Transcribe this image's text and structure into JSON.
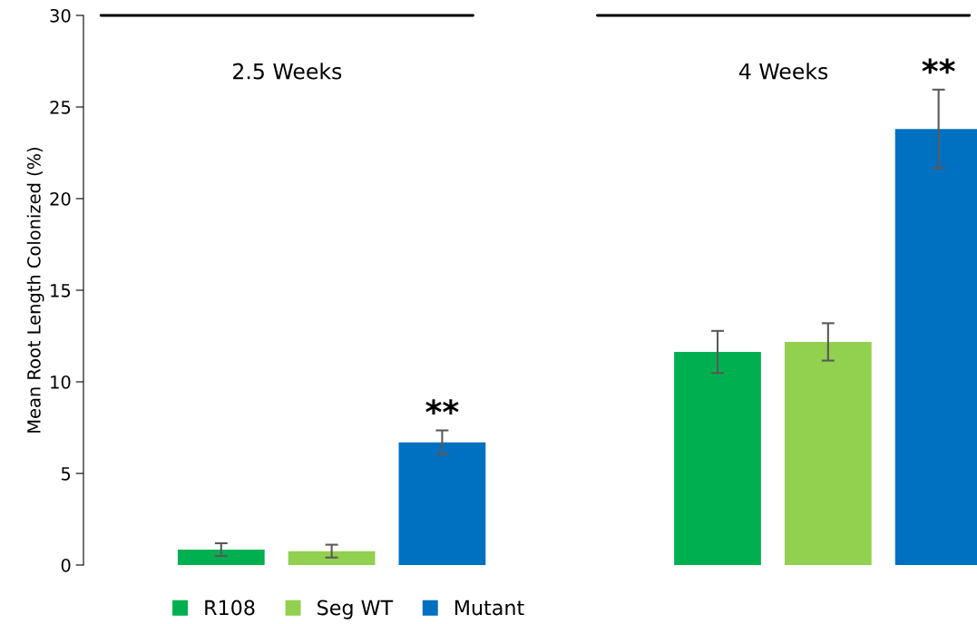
{
  "chart_data": {
    "type": "bar",
    "ylabel": "Mean Root Length Colonized (%)",
    "categories": [
      "2.5 Weeks",
      "4 Weeks"
    ],
    "series": [
      {
        "name": "R108",
        "color": "#00b050",
        "values": [
          0.84,
          11.63
        ],
        "errors": [
          0.35,
          1.15
        ]
      },
      {
        "name": "Seg WT",
        "color": "#92d050",
        "values": [
          0.76,
          12.18
        ],
        "errors": [
          0.35,
          1.02
        ]
      },
      {
        "name": "Mutant",
        "color": "#0070c0",
        "values": [
          6.7,
          23.8
        ],
        "errors": [
          0.65,
          2.15
        ]
      }
    ],
    "annotations": [
      "**",
      "**"
    ],
    "ylim": [
      0,
      30
    ],
    "yticks": [
      0,
      5,
      10,
      15,
      20,
      25,
      30
    ],
    "grid": false,
    "legend": "bottom left"
  }
}
